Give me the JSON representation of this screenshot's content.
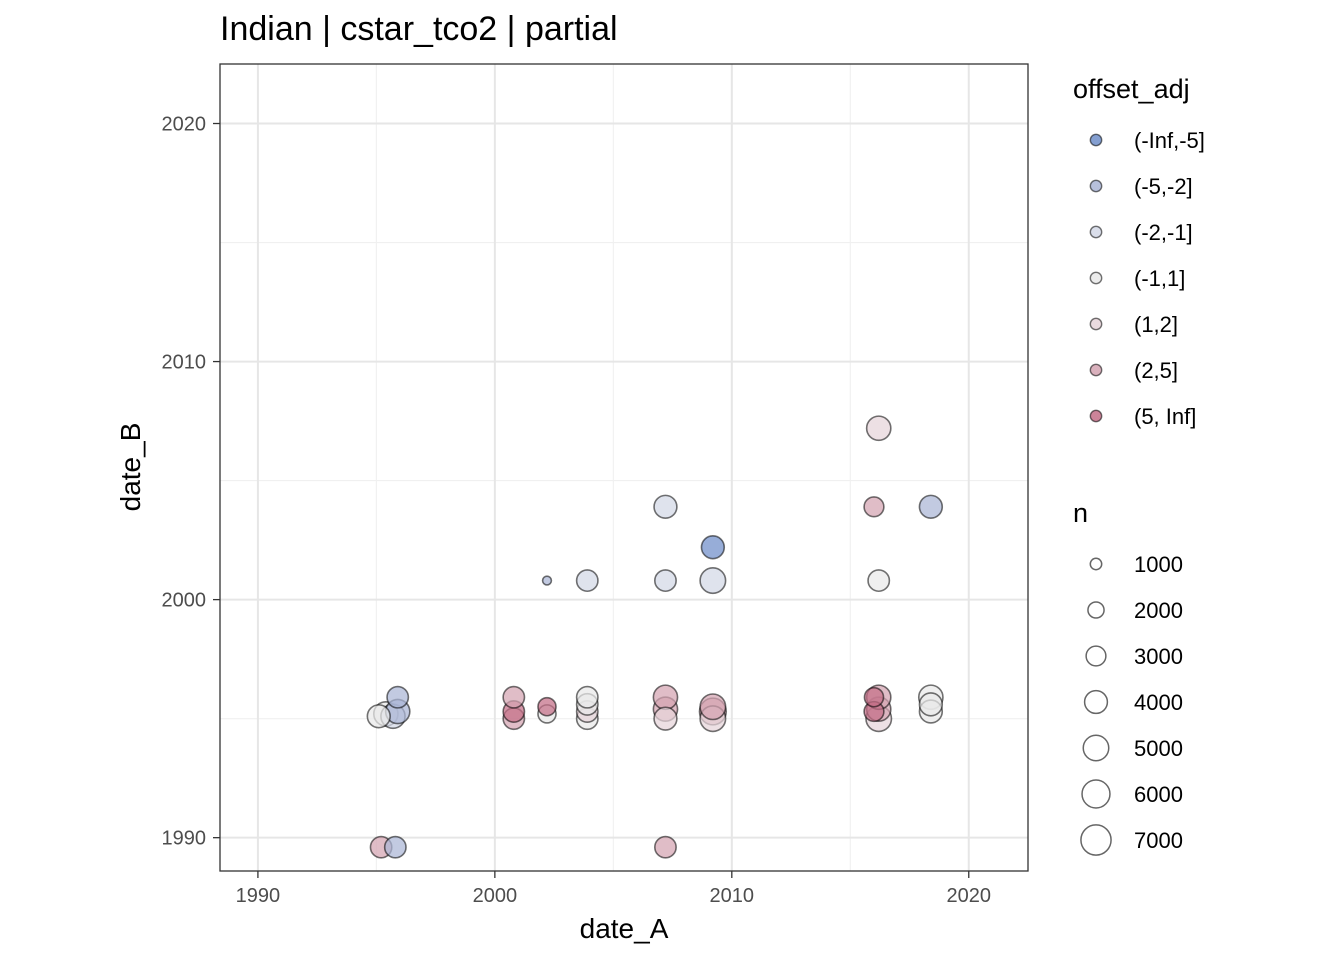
{
  "chart_data": {
    "type": "scatter",
    "title": "Indian | cstar_tco2 | partial",
    "xlabel": "date_A",
    "ylabel": "date_B",
    "xlim": [
      1988.4,
      2022.5
    ],
    "ylim": [
      1988.6,
      2022.5
    ],
    "x_ticks": [
      1990,
      2000,
      2010,
      2020
    ],
    "y_ticks": [
      1990,
      2000,
      2010,
      2020
    ],
    "grid": true,
    "legend_placement": "right",
    "color_legend": {
      "title": "offset_adj",
      "items": [
        {
          "label": "(-Inf,-5]",
          "color": "#6f8ec9"
        },
        {
          "label": "(-5,-2]",
          "color": "#aab5d6"
        },
        {
          "label": "(-2,-1]",
          "color": "#d3d8e6"
        },
        {
          "label": "(-1,1]",
          "color": "#e9e9e9"
        },
        {
          "label": "(1,2]",
          "color": "#e6d4d9"
        },
        {
          "label": "(2,5]",
          "color": "#d4a3b1"
        },
        {
          "label": "(5, Inf]",
          "color": "#c36e87"
        }
      ]
    },
    "size_legend": {
      "title": "n",
      "items": [
        {
          "label": "1000",
          "value": 1000
        },
        {
          "label": "2000",
          "value": 2000
        },
        {
          "label": "3000",
          "value": 3000
        },
        {
          "label": "4000",
          "value": 4000
        },
        {
          "label": "5000",
          "value": 5000
        },
        {
          "label": "6000",
          "value": 6000
        },
        {
          "label": "7000",
          "value": 7000
        }
      ]
    },
    "points": [
      {
        "x": 1995.2,
        "y": 1989.6,
        "n": 3500,
        "cls": "(2,5]"
      },
      {
        "x": 1995.8,
        "y": 1989.6,
        "n": 3500,
        "cls": "(-5,-2]"
      },
      {
        "x": 1995.1,
        "y": 1995.1,
        "n": 4000,
        "cls": "(-1,1]"
      },
      {
        "x": 1995.4,
        "y": 1995.2,
        "n": 4500,
        "cls": "(-1,1]"
      },
      {
        "x": 1995.7,
        "y": 1995.1,
        "n": 4500,
        "cls": "(-2,-1]"
      },
      {
        "x": 1995.9,
        "y": 1995.3,
        "n": 4500,
        "cls": "(-5,-2]"
      },
      {
        "x": 1995.9,
        "y": 1995.9,
        "n": 3500,
        "cls": "(-5,-2]"
      },
      {
        "x": 2000.8,
        "y": 1995.0,
        "n": 3500,
        "cls": "(2,5]"
      },
      {
        "x": 2000.8,
        "y": 1995.3,
        "n": 3500,
        "cls": "(5, Inf]"
      },
      {
        "x": 2000.8,
        "y": 1995.9,
        "n": 3500,
        "cls": "(2,5]"
      },
      {
        "x": 2002.2,
        "y": 1995.2,
        "n": 2500,
        "cls": "(-1,1]"
      },
      {
        "x": 2002.2,
        "y": 1995.5,
        "n": 2500,
        "cls": "(5, Inf]"
      },
      {
        "x": 2002.2,
        "y": 2000.8,
        "n": 600,
        "cls": "(-5,-2]"
      },
      {
        "x": 2003.9,
        "y": 1995.0,
        "n": 3500,
        "cls": "(-1,1]"
      },
      {
        "x": 2003.9,
        "y": 1995.3,
        "n": 3500,
        "cls": "(1,2]"
      },
      {
        "x": 2003.9,
        "y": 1995.6,
        "n": 3500,
        "cls": "(-1,1]"
      },
      {
        "x": 2003.9,
        "y": 1995.9,
        "n": 3500,
        "cls": "(-1,1]"
      },
      {
        "x": 2003.9,
        "y": 2000.8,
        "n": 3500,
        "cls": "(-2,-1]"
      },
      {
        "x": 2007.2,
        "y": 1989.6,
        "n": 3500,
        "cls": "(2,5]"
      },
      {
        "x": 2007.2,
        "y": 1995.0,
        "n": 4000,
        "cls": "(1,2]"
      },
      {
        "x": 2007.2,
        "y": 1995.4,
        "n": 4500,
        "cls": "(2,5]"
      },
      {
        "x": 2007.2,
        "y": 1995.9,
        "n": 4500,
        "cls": "(2,5]"
      },
      {
        "x": 2007.2,
        "y": 2000.8,
        "n": 3500,
        "cls": "(-2,-1]"
      },
      {
        "x": 2007.2,
        "y": 2003.9,
        "n": 4000,
        "cls": "(-2,-1]"
      },
      {
        "x": 2009.2,
        "y": 1995.0,
        "n": 5000,
        "cls": "(1,2]"
      },
      {
        "x": 2009.2,
        "y": 1995.3,
        "n": 5500,
        "cls": "(2,5]"
      },
      {
        "x": 2009.2,
        "y": 1995.5,
        "n": 5000,
        "cls": "(2,5]"
      },
      {
        "x": 2009.2,
        "y": 2000.8,
        "n": 5000,
        "cls": "(-2,-1]"
      },
      {
        "x": 2009.2,
        "y": 2002.2,
        "n": 4000,
        "cls": "(-Inf,-5]"
      },
      {
        "x": 2016.0,
        "y": 1995.3,
        "n": 3000,
        "cls": "(5, Inf]"
      },
      {
        "x": 2016.0,
        "y": 1995.9,
        "n": 2800,
        "cls": "(5, Inf]"
      },
      {
        "x": 2016.0,
        "y": 2003.9,
        "n": 3000,
        "cls": "(2,5]"
      },
      {
        "x": 2016.2,
        "y": 1995.0,
        "n": 5000,
        "cls": "(1,2]"
      },
      {
        "x": 2016.2,
        "y": 1995.4,
        "n": 4500,
        "cls": "(2,5]"
      },
      {
        "x": 2016.2,
        "y": 1995.9,
        "n": 4500,
        "cls": "(2,5]"
      },
      {
        "x": 2016.2,
        "y": 2000.8,
        "n": 3500,
        "cls": "(-1,1]"
      },
      {
        "x": 2016.2,
        "y": 2007.2,
        "n": 4500,
        "cls": "(1,2]"
      },
      {
        "x": 2018.4,
        "y": 1995.3,
        "n": 4000,
        "cls": "(-1,1]"
      },
      {
        "x": 2018.4,
        "y": 1995.6,
        "n": 4000,
        "cls": "(-1,1]"
      },
      {
        "x": 2018.4,
        "y": 1995.9,
        "n": 4500,
        "cls": "(-1,1]"
      },
      {
        "x": 2018.4,
        "y": 2003.9,
        "n": 4000,
        "cls": "(-5,-2]"
      }
    ]
  }
}
